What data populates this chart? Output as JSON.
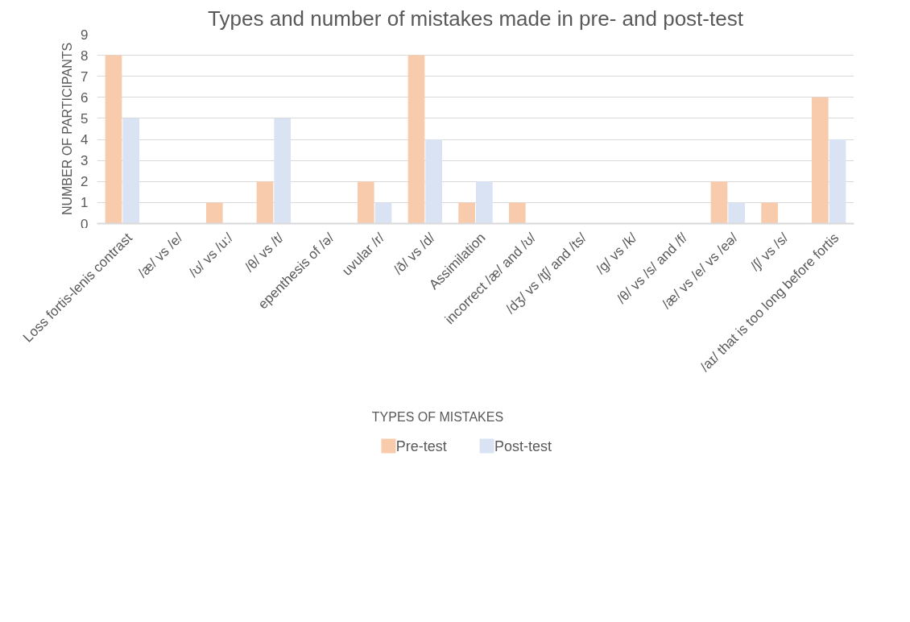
{
  "chart_data": {
    "type": "bar",
    "title": "Types and number of mistakes made in pre- and post-test",
    "xlabel": "TYPES OF MISTAKES",
    "ylabel": "NUMBER OF PARTICIPANTS",
    "categories": [
      "Loss fortis-lenis contrast",
      "/æ/ vs /e/",
      "/ʊ/ vs /u:/",
      "/θ/ vs /t/",
      "epenthesis of /ə/",
      "uvular /r/",
      "/ð/ vs /d/",
      "Assimilation",
      "incorrect /æ/ and /ʊ/",
      "/dʒ/ vs /tʃ/ and /ts/",
      "/g/ vs /k/",
      "/θ/ vs /s/ and /f/",
      "/æ/ vs /e/ vs /eə/",
      "/ʃ/ vs /s/",
      "/aɪ/ that is too long before fortis"
    ],
    "series": [
      {
        "name": "Pre-test",
        "color": "#f8cbad",
        "values": [
          8,
          0,
          1,
          2,
          0,
          2,
          8,
          1,
          1,
          0,
          0,
          0,
          2,
          1,
          6
        ]
      },
      {
        "name": "Post-test",
        "color": "#dae3f3",
        "values": [
          5,
          0,
          0,
          5,
          0,
          1,
          4,
          2,
          0,
          0,
          0,
          0,
          1,
          0,
          4
        ]
      }
    ],
    "ylim": [
      0,
      9
    ],
    "yticks": [
      0,
      1,
      2,
      3,
      4,
      5,
      6,
      7,
      8,
      9
    ],
    "grid": "y",
    "legend": "bottom"
  }
}
